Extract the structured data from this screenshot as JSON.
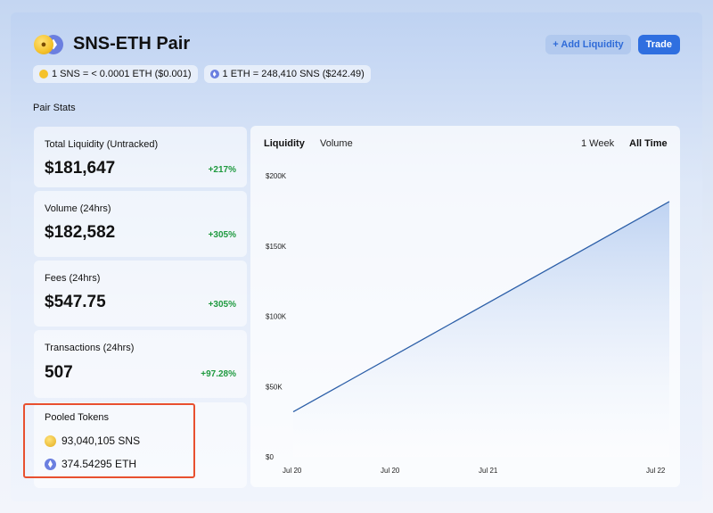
{
  "header": {
    "title": "SNS-ETH Pair",
    "add_liquidity_label": "+ Add Liquidity",
    "trade_label": "Trade"
  },
  "rates": {
    "sns_rate": "1 SNS = < 0.0001 ETH ($0.001)",
    "eth_rate": "1 ETH = 248,410 SNS ($242.49)"
  },
  "pair_stats_label": "Pair Stats",
  "stats": [
    {
      "label": "Total Liquidity (Untracked)",
      "value": "$181,647",
      "change": "+217%"
    },
    {
      "label": "Volume (24hrs)",
      "value": "$182,582",
      "change": "+305%"
    },
    {
      "label": "Fees (24hrs)",
      "value": "$547.75",
      "change": "+305%"
    },
    {
      "label": "Transactions (24hrs)",
      "value": "507",
      "change": "+97.28%"
    }
  ],
  "pooled": {
    "label": "Pooled Tokens",
    "sns": "93,040,105 SNS",
    "eth": "374.54295 ETH"
  },
  "chart_tabs": {
    "liquidity": "Liquidity",
    "volume": "Volume",
    "week": "1 Week",
    "all_time": "All Time"
  },
  "colors": {
    "accent": "#2f6fe0",
    "positive": "#1f9a3f",
    "line": "#2c5fa8",
    "highlight": "#e8502f"
  },
  "chart_data": {
    "type": "area",
    "y_ticks": [
      "$200K",
      "$150K",
      "$100K",
      "$50K",
      "$0"
    ],
    "y_tick_values": [
      200000,
      150000,
      100000,
      50000,
      0
    ],
    "x_ticks": [
      "Jul 20",
      "Jul 20",
      "Jul 21",
      "Jul 22"
    ],
    "ylim": [
      0,
      200000
    ],
    "series": [
      {
        "x": [
          0,
          1
        ],
        "values": [
          32000,
          181647
        ]
      }
    ]
  }
}
